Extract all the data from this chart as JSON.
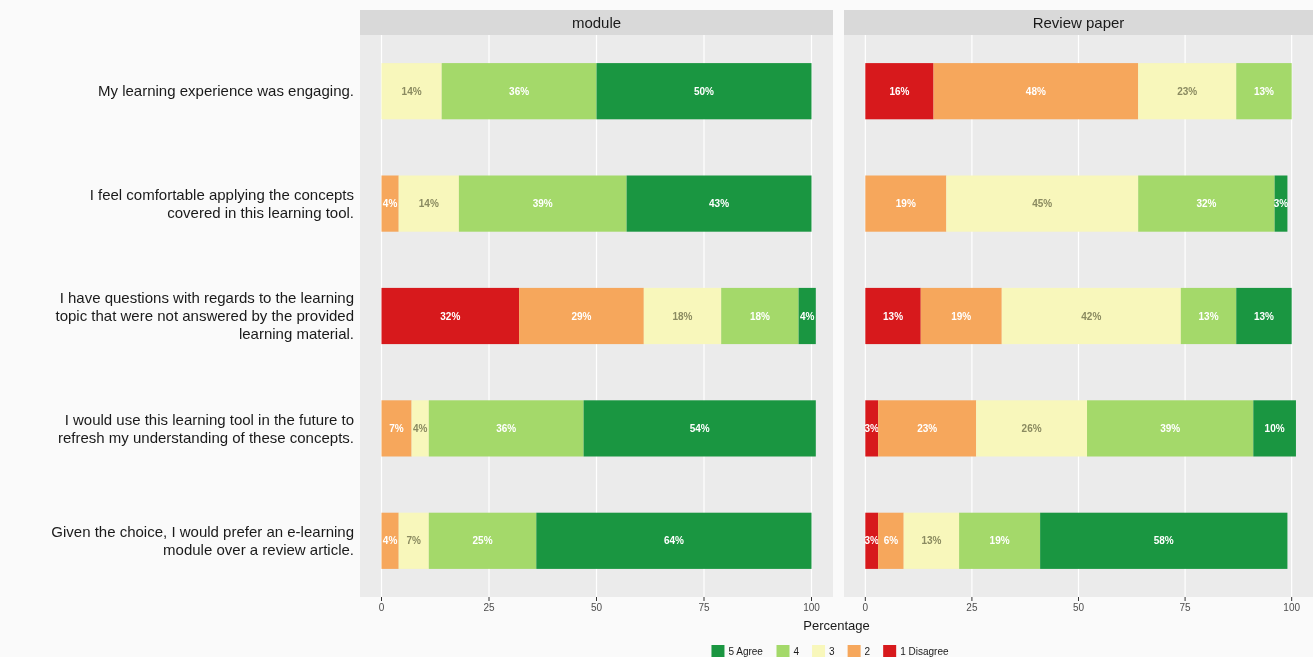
{
  "chart_data": [
    {
      "type": "bar",
      "title": "module",
      "orientation": "horizontal",
      "stacked": true,
      "xlabel": "Percentage",
      "categories": [
        "My learning experience was engaging.",
        "I feel comfortable applying the concepts covered in this learning tool.",
        "I have questions with regards to the learning topic that were not answered by the provided learning material.",
        "I would use this learning tool in the future to refresh my understanding of these concepts.",
        "Given the choice, I would prefer an e-learning module over a review article."
      ],
      "xlim": [
        -5,
        105
      ],
      "xticks": [
        0,
        25,
        50,
        75,
        100
      ],
      "grid": "x",
      "legend": "bottom",
      "series": [
        {
          "name": "1 Disagree",
          "color": "#d7191c",
          "values": [
            null,
            null,
            32,
            null,
            null
          ],
          "value_labels": [
            null,
            null,
            "32%",
            null,
            null
          ]
        },
        {
          "name": "2",
          "color": "#f6a75c",
          "values": [
            null,
            4,
            29,
            7,
            4
          ],
          "value_labels": [
            null,
            "4%",
            "29%",
            "7%",
            "4%"
          ]
        },
        {
          "name": "3",
          "color": "#f8f7bb",
          "values": [
            14,
            14,
            18,
            4,
            7
          ],
          "value_labels": [
            "14%",
            "14%",
            "18%",
            "4%",
            "7%"
          ]
        },
        {
          "name": "4",
          "color": "#a4d96a",
          "values": [
            36,
            39,
            18,
            36,
            25
          ],
          "value_labels": [
            "36%",
            "39%",
            "18%",
            "36%",
            "25%"
          ]
        },
        {
          "name": "5 Agree",
          "color": "#1a9641",
          "values": [
            50,
            43,
            4,
            54,
            64
          ],
          "value_labels": [
            "50%",
            "43%",
            "4%",
            "54%",
            "64%"
          ]
        }
      ]
    },
    {
      "type": "bar",
      "title": "Review paper",
      "orientation": "horizontal",
      "stacked": true,
      "categories": [
        "My learning experience was engaging.",
        "I feel comfortable applying the concepts covered in this learning tool.",
        "I have questions with regards to the learning topic that were not answered by the provided learning material.",
        "I would use this learning tool in the future to refresh my understanding of these concepts.",
        "Given the choice, I would prefer an e-learning module over a review article."
      ],
      "xlim": [
        -5,
        105
      ],
      "xticks": [
        0,
        25,
        50,
        75,
        100
      ],
      "grid": "x",
      "tick_labels": "x",
      "legend": "bottom",
      "series": [
        {
          "name": "1 Disagree",
          "color": "#d7191c",
          "values": [
            16,
            null,
            13,
            3,
            3
          ],
          "value_labels": [
            "16%",
            null,
            "13%",
            "3%",
            "3%"
          ]
        },
        {
          "name": "2",
          "color": "#f6a75c",
          "values": [
            48,
            19,
            19,
            23,
            6
          ],
          "value_labels": [
            "48%",
            "19%",
            "19%",
            "23%",
            "6%"
          ]
        },
        {
          "name": "3",
          "color": "#f8f7bb",
          "values": [
            23,
            45,
            42,
            26,
            13
          ],
          "value_labels": [
            "23%",
            "45%",
            "42%",
            "26%",
            "13%"
          ]
        },
        {
          "name": "4",
          "color": "#a4d96a",
          "values": [
            13,
            32,
            13,
            39,
            19
          ],
          "value_labels": [
            "13%",
            "32%",
            "13%",
            "39%",
            "19%"
          ]
        },
        {
          "name": "5 Agree",
          "color": "#1a9641",
          "values": [
            null,
            3,
            13,
            10,
            58
          ],
          "value_labels": [
            null,
            "3%",
            "13%",
            "10%",
            "58%"
          ]
        }
      ]
    }
  ]
}
